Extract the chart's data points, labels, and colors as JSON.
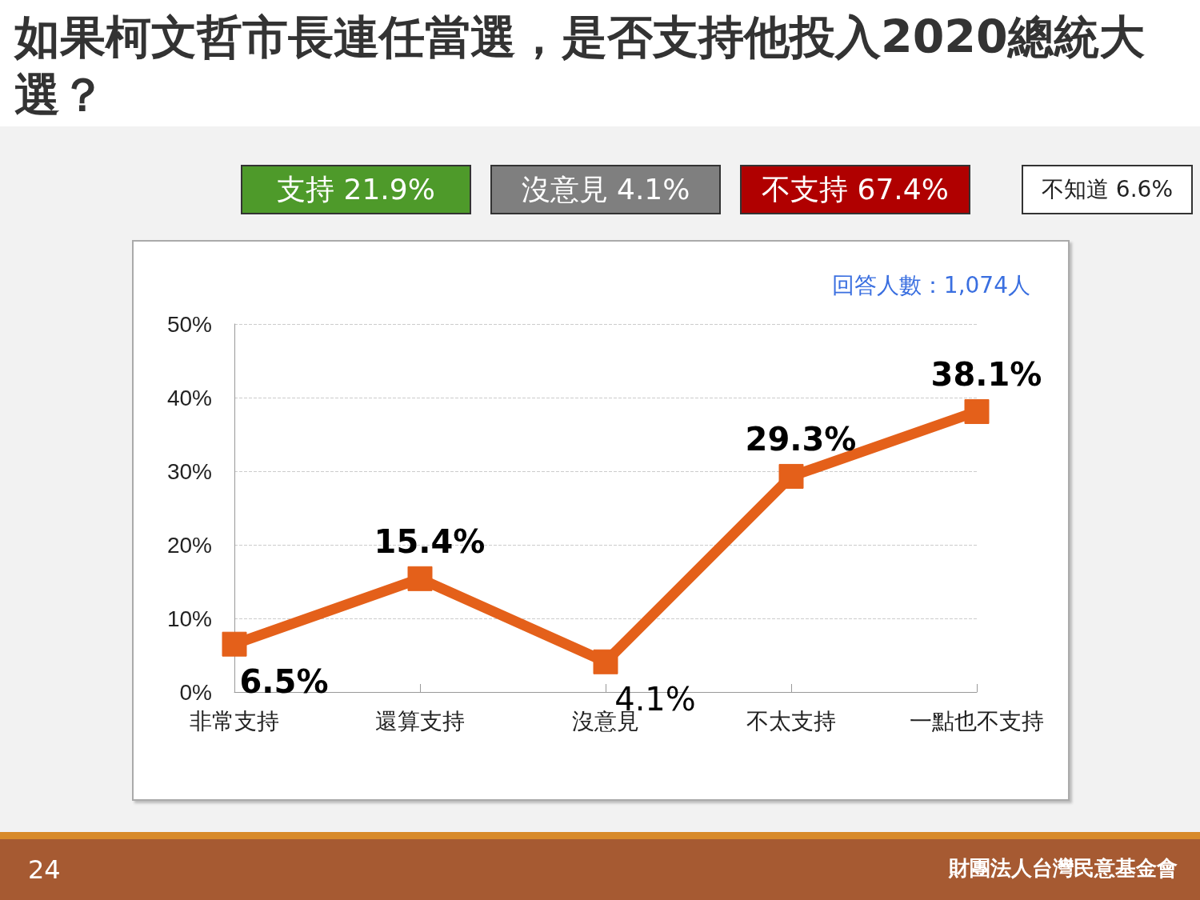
{
  "chart_data": {
    "type": "line",
    "title": "如果柯文哲市長連任當選，是否支持他投入2020總統大選？",
    "categories": [
      "非常支持",
      "還算支持",
      "沒意見",
      "不太支持",
      "一點也不支持"
    ],
    "series": [
      {
        "color": "#e4601a",
        "values": [
          6.5,
          15.4,
          4.1,
          29.3,
          38.1
        ]
      }
    ],
    "value_labels": [
      "6.5%",
      "15.4%",
      "4.1%",
      "29.3%",
      "38.1%"
    ],
    "ylim": [
      0,
      50
    ],
    "yticks": [
      {
        "value": 0,
        "label": "0%"
      },
      {
        "value": 10,
        "label": "10%"
      },
      {
        "value": 20,
        "label": "20%"
      },
      {
        "value": 30,
        "label": "30%"
      },
      {
        "value": 40,
        "label": "40%"
      },
      {
        "value": 50,
        "label": "50%"
      }
    ],
    "grid": "y",
    "marker": "square",
    "line_style": "solid",
    "annotations": [
      "支持 21.9%",
      "沒意見 4.1%",
      "不支持 67.4%",
      "不知道 6.6%",
      "回答人數：1,074人",
      "24",
      "財團法人台灣民意基金會"
    ]
  }
}
